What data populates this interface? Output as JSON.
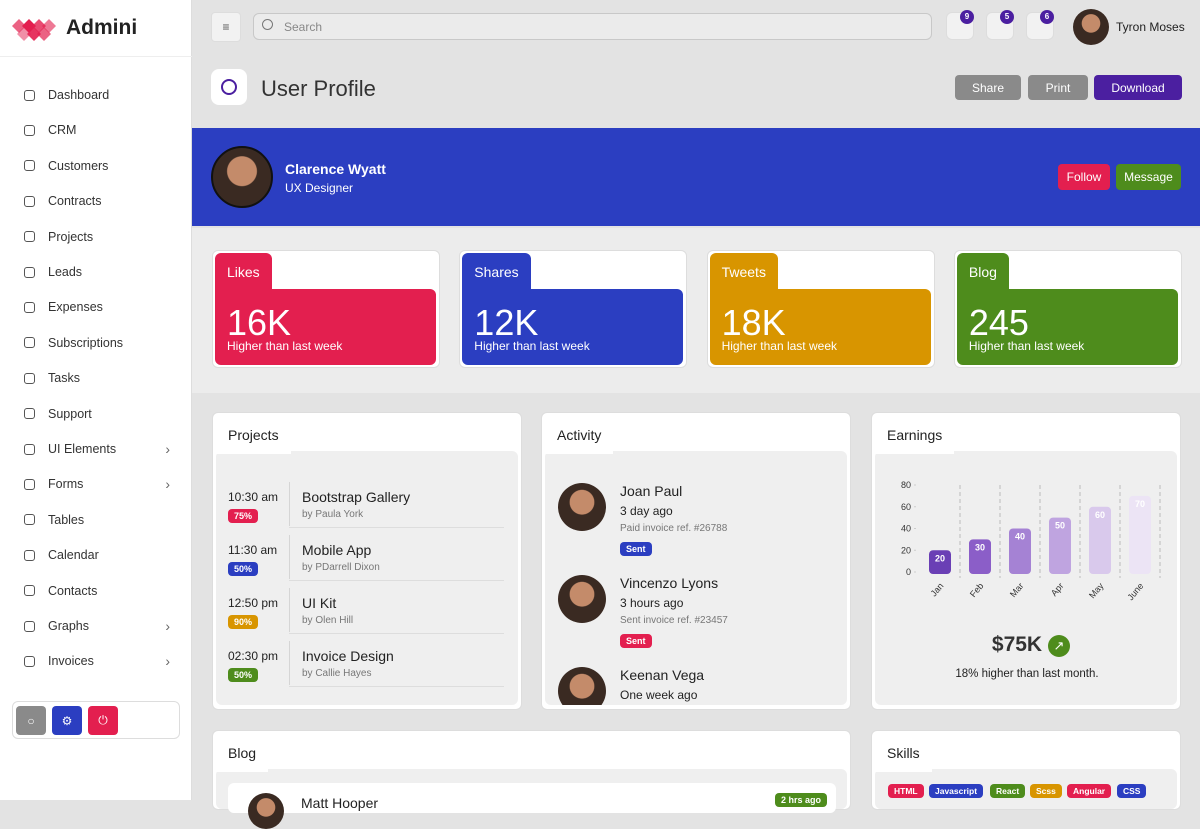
{
  "brand": "Admini",
  "sidebar": {
    "menu": [
      {
        "label": "Dashboard"
      },
      {
        "label": "CRM"
      },
      {
        "label": "Customers"
      },
      {
        "label": "Contracts"
      },
      {
        "label": "Projects"
      },
      {
        "label": "Leads"
      },
      {
        "label": "Expenses"
      },
      {
        "label": "Subscriptions"
      },
      {
        "label": "Tasks"
      },
      {
        "label": "Support"
      },
      {
        "label": "UI Elements",
        "submenu": true
      },
      {
        "label": "Forms",
        "submenu": true
      },
      {
        "label": "Tables"
      },
      {
        "label": "Calendar"
      },
      {
        "label": "Contacts"
      },
      {
        "label": "Graphs",
        "submenu": true
      },
      {
        "label": "Invoices",
        "submenu": true
      }
    ]
  },
  "topbar": {
    "search_placeholder": "Search",
    "badges": [
      "9",
      "5",
      "6"
    ],
    "user": "Tyron Moses"
  },
  "header": {
    "title": "User Profile",
    "buttons": [
      "Share",
      "Print",
      "Download"
    ]
  },
  "profile": {
    "name": "Clarence Wyatt",
    "role": "UX Designer",
    "buttons": [
      "Follow",
      "Message"
    ]
  },
  "stats": [
    {
      "label": "Likes",
      "value": "16K",
      "note": "Higher than last week",
      "color": "#e31f4f"
    },
    {
      "label": "Shares",
      "value": "12K",
      "note": "Higher than last week",
      "color": "#2b3ec1"
    },
    {
      "label": "Tweets",
      "value": "18K",
      "note": "Higher than last week",
      "color": "#d89500"
    },
    {
      "label": "Blog",
      "value": "245",
      "note": "Higher than last week",
      "color": "#4e8c1c"
    }
  ],
  "projects": {
    "title": "Projects",
    "items": [
      {
        "time": "10:30 am",
        "badge": "75%",
        "color": "#e31f4f",
        "title": "Bootstrap Gallery",
        "by": "by Paula York"
      },
      {
        "time": "11:30 am",
        "badge": "50%",
        "color": "#2b3ec1",
        "title": "Mobile App",
        "by": "by PDarrell Dixon"
      },
      {
        "time": "12:50 pm",
        "badge": "90%",
        "color": "#d89500",
        "title": "UI Kit",
        "by": "by Olen Hill"
      },
      {
        "time": "02:30 pm",
        "badge": "50%",
        "color": "#4e8c1c",
        "title": "Invoice Design",
        "by": "by Callie Hayes"
      }
    ]
  },
  "activity": {
    "title": "Activity",
    "items": [
      {
        "name": "Joan Paul",
        "time": "3 day ago",
        "note": "Paid invoice ref. #26788",
        "status": "Sent",
        "color": "#2b3ec1"
      },
      {
        "name": "Vincenzo Lyons",
        "time": "3 hours ago",
        "note": "Sent invoice ref. #23457",
        "status": "Sent",
        "color": "#e31f4f"
      },
      {
        "name": "Keenan Vega",
        "time": "One week ago"
      }
    ]
  },
  "earnings": {
    "title": "Earnings",
    "chart": {
      "type": "bar",
      "categories": [
        "Jan",
        "Feb",
        "Mar",
        "Apr",
        "May",
        "June"
      ],
      "values": [
        20,
        30,
        40,
        50,
        60,
        70
      ],
      "colors": [
        "#6a3fb5",
        "#8b5ec8",
        "#a582d4",
        "#bfa4e0",
        "#d9c9ec",
        "#ece4f5"
      ],
      "ylim": [
        0,
        80
      ],
      "yticks": [
        0,
        20,
        40,
        60,
        80
      ]
    },
    "amount": "$75K",
    "note": "18% higher than last month."
  },
  "blog": {
    "title": "Blog",
    "items": [
      {
        "name": "Matt Hooper",
        "time": "2 hrs ago"
      }
    ]
  },
  "skills": {
    "title": "Skills",
    "items": [
      {
        "label": "HTML",
        "color": "#e31f4f"
      },
      {
        "label": "Javascript",
        "color": "#2b3ec1"
      },
      {
        "label": "React",
        "color": "#4e8c1c"
      },
      {
        "label": "Scss",
        "color": "#d89500"
      },
      {
        "label": "Angular",
        "color": "#e31f4f"
      },
      {
        "label": "CSS",
        "color": "#2b3ec1"
      }
    ]
  }
}
